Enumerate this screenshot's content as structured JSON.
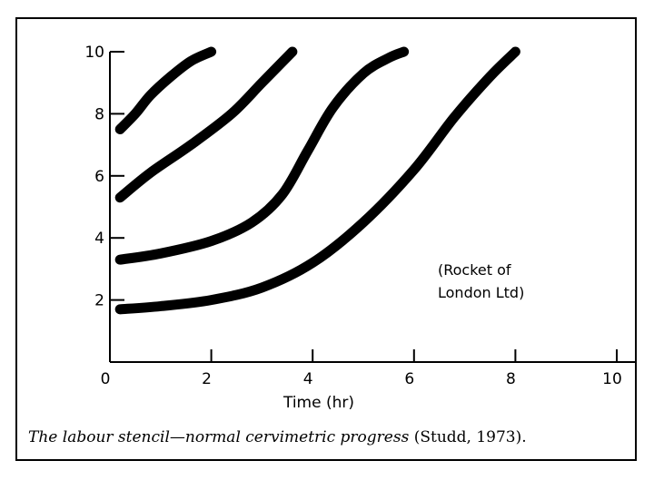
{
  "chart_data": {
    "type": "line",
    "title": "",
    "xlabel": "Time (hr)",
    "ylabel": "",
    "xlim": [
      0,
      10
    ],
    "ylim": [
      0,
      10
    ],
    "x_ticks": [
      0,
      2,
      4,
      6,
      8,
      10
    ],
    "y_ticks": [
      2,
      4,
      6,
      8,
      10
    ],
    "grid": false,
    "legend": "none",
    "series": [
      {
        "name": "",
        "points": [
          [
            0.2,
            7.5
          ],
          [
            0.5,
            8.0
          ],
          [
            0.8,
            8.6
          ],
          [
            1.2,
            9.2
          ],
          [
            1.6,
            9.7
          ],
          [
            2.0,
            10.0
          ]
        ]
      },
      {
        "name": "",
        "points": [
          [
            0.2,
            5.3
          ],
          [
            0.8,
            6.1
          ],
          [
            1.6,
            7.0
          ],
          [
            2.4,
            8.0
          ],
          [
            3.0,
            9.0
          ],
          [
            3.6,
            10.0
          ]
        ]
      },
      {
        "name": "",
        "points": [
          [
            0.2,
            3.3
          ],
          [
            1.0,
            3.5
          ],
          [
            2.0,
            3.9
          ],
          [
            2.8,
            4.5
          ],
          [
            3.4,
            5.4
          ],
          [
            3.9,
            6.8
          ],
          [
            4.4,
            8.2
          ],
          [
            5.0,
            9.3
          ],
          [
            5.5,
            9.8
          ],
          [
            5.8,
            10.0
          ]
        ]
      },
      {
        "name": "",
        "points": [
          [
            0.2,
            1.7
          ],
          [
            1.0,
            1.8
          ],
          [
            2.0,
            2.0
          ],
          [
            3.0,
            2.4
          ],
          [
            4.0,
            3.2
          ],
          [
            5.0,
            4.5
          ],
          [
            6.0,
            6.2
          ],
          [
            6.8,
            7.9
          ],
          [
            7.5,
            9.2
          ],
          [
            8.0,
            10.0
          ]
        ]
      }
    ],
    "annotation_line1": "(Rocket of",
    "annotation_line2": "London Ltd)"
  },
  "caption": {
    "text": "The labour stencil—normal cervimetric progress ",
    "citation": "(Studd, 1973)."
  },
  "colors": {
    "ink": "#000000",
    "background": "#ffffff"
  }
}
